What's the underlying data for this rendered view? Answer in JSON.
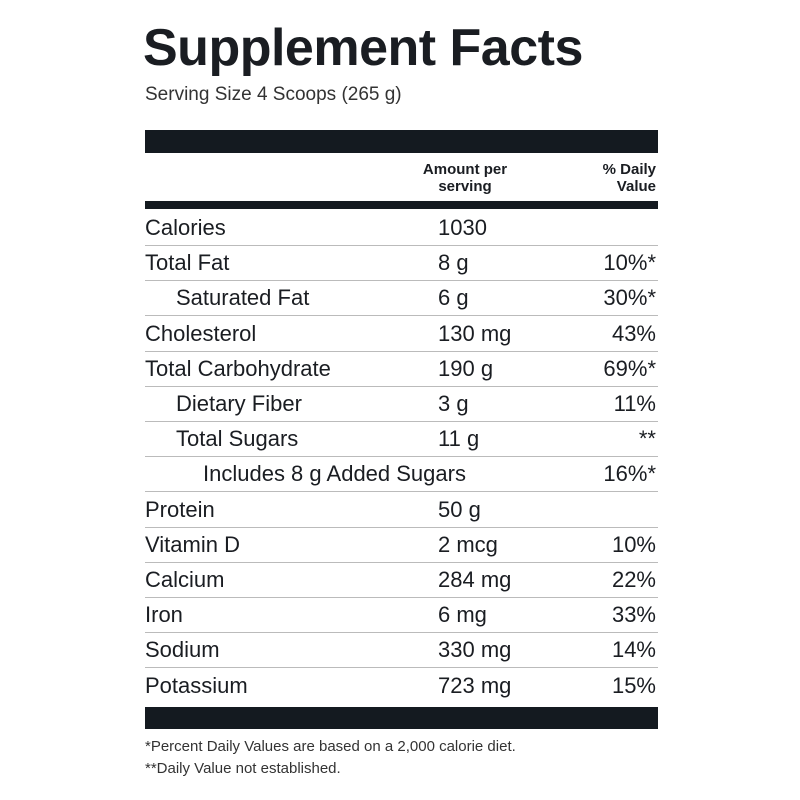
{
  "title": "Supplement Facts",
  "serving_size": "Serving Size 4 Scoops (265 g)",
  "header": {
    "amount": "Amount per serving",
    "daily_value": "% Daily Value"
  },
  "rows": [
    {
      "name": "Calories",
      "amount": "1030"
    },
    {
      "name": "Total Fat",
      "amount": "8 g",
      "dv": "10%*"
    },
    {
      "name": "Saturated Fat",
      "amount": "6 g",
      "dv": "30%*"
    },
    {
      "name": "Cholesterol",
      "amount": "130 mg",
      "dv": "43%"
    },
    {
      "name": "Total Carbohydrate",
      "amount": "190 g",
      "dv": "69%*"
    },
    {
      "name": "Dietary Fiber",
      "amount": "3 g",
      "dv": "11%"
    },
    {
      "name": "Total Sugars",
      "amount": "11 g",
      "dv": "**"
    },
    {
      "name": "Includes 8 g Added Sugars",
      "dv": "16%*"
    },
    {
      "name": "Protein",
      "amount": "50 g"
    },
    {
      "name": "Vitamin D",
      "amount": "2 mcg",
      "dv": "10%"
    },
    {
      "name": "Calcium",
      "amount": "284 mg",
      "dv": "22%"
    },
    {
      "name": "Iron",
      "amount": "6 mg",
      "dv": "33%"
    },
    {
      "name": "Sodium",
      "amount": "330 mg",
      "dv": "14%"
    },
    {
      "name": "Potassium",
      "amount": "723 mg",
      "dv": "15%"
    }
  ],
  "footnotes": [
    "*Percent Daily Values are based on a 2,000 calorie diet.",
    "**Daily Value not established."
  ]
}
